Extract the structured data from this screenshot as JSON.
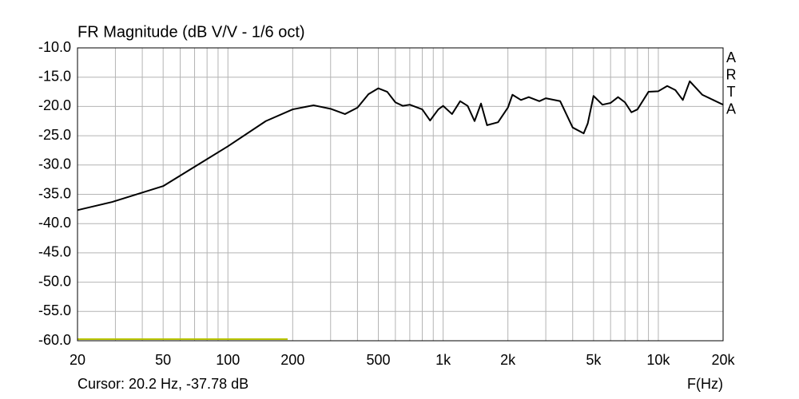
{
  "chart_data": {
    "type": "line",
    "title": "FR Magnitude (dB V/V - 1/6 oct)",
    "watermark": [
      "A",
      "R",
      "T",
      "A"
    ],
    "x_label": "F(Hz)",
    "cursor_text": "Cursor: 20.2 Hz, -37.78 dB",
    "x_scale": "log",
    "grid": true,
    "color": "#000000",
    "xlim": [
      20,
      20000
    ],
    "xticks": [
      20,
      50,
      100,
      200,
      500,
      {
        "value": 1000,
        "label": "1k"
      },
      {
        "value": 2000,
        "label": "2k"
      },
      {
        "value": 5000,
        "label": "5k"
      },
      {
        "value": 10000,
        "label": "10k"
      },
      {
        "value": 20000,
        "label": "20k"
      }
    ],
    "x_minor_ticks": [
      30,
      40,
      60,
      70,
      80,
      90,
      300,
      400,
      600,
      700,
      800,
      900,
      3000,
      4000,
      6000,
      7000,
      8000,
      9000
    ],
    "ylim": [
      -60,
      -10
    ],
    "yticks": [
      {
        "value": -10,
        "label": "-10.0"
      },
      {
        "value": -15,
        "label": "-15.0"
      },
      {
        "value": -20,
        "label": "-20.0"
      },
      {
        "value": -25,
        "label": "-25.0"
      },
      {
        "value": -30,
        "label": "-30.0"
      },
      {
        "value": -35,
        "label": "-35.0"
      },
      {
        "value": -40,
        "label": "-40.0"
      },
      {
        "value": -45,
        "label": "-45.0"
      },
      {
        "value": -50,
        "label": "-50.0"
      },
      {
        "value": -55,
        "label": "-55.0"
      },
      {
        "value": -60,
        "label": "-60.0"
      }
    ],
    "x": [
      20,
      29,
      50,
      100,
      150,
      200,
      250,
      300,
      350,
      400,
      450,
      500,
      550,
      600,
      650,
      700,
      800,
      870,
      950,
      1000,
      1100,
      1200,
      1300,
      1400,
      1500,
      1600,
      1800,
      2000,
      2100,
      2300,
      2500,
      2800,
      3000,
      3500,
      4000,
      4500,
      4700,
      5000,
      5500,
      6000,
      6500,
      7000,
      7500,
      8000,
      9000,
      10000,
      11000,
      12000,
      13000,
      14000,
      16000,
      18000,
      20000
    ],
    "values": [
      -37.7,
      -36.3,
      -33.6,
      -26.8,
      -22.5,
      -20.5,
      -19.8,
      -20.4,
      -21.3,
      -20.2,
      -17.9,
      -16.9,
      -17.5,
      -19.3,
      -19.9,
      -19.7,
      -20.5,
      -22.4,
      -20.5,
      -19.9,
      -21.3,
      -19.1,
      -19.9,
      -22.5,
      -19.5,
      -23.2,
      -22.7,
      -20.2,
      -18.0,
      -18.9,
      -18.4,
      -19.1,
      -18.6,
      -19.1,
      -23.6,
      -24.6,
      -22.9,
      -18.2,
      -19.7,
      -19.4,
      -18.4,
      -19.3,
      -21.0,
      -20.5,
      -17.5,
      -17.4,
      -16.5,
      -17.2,
      -18.9,
      -15.7,
      -18.0,
      -18.9,
      -19.7
    ]
  }
}
